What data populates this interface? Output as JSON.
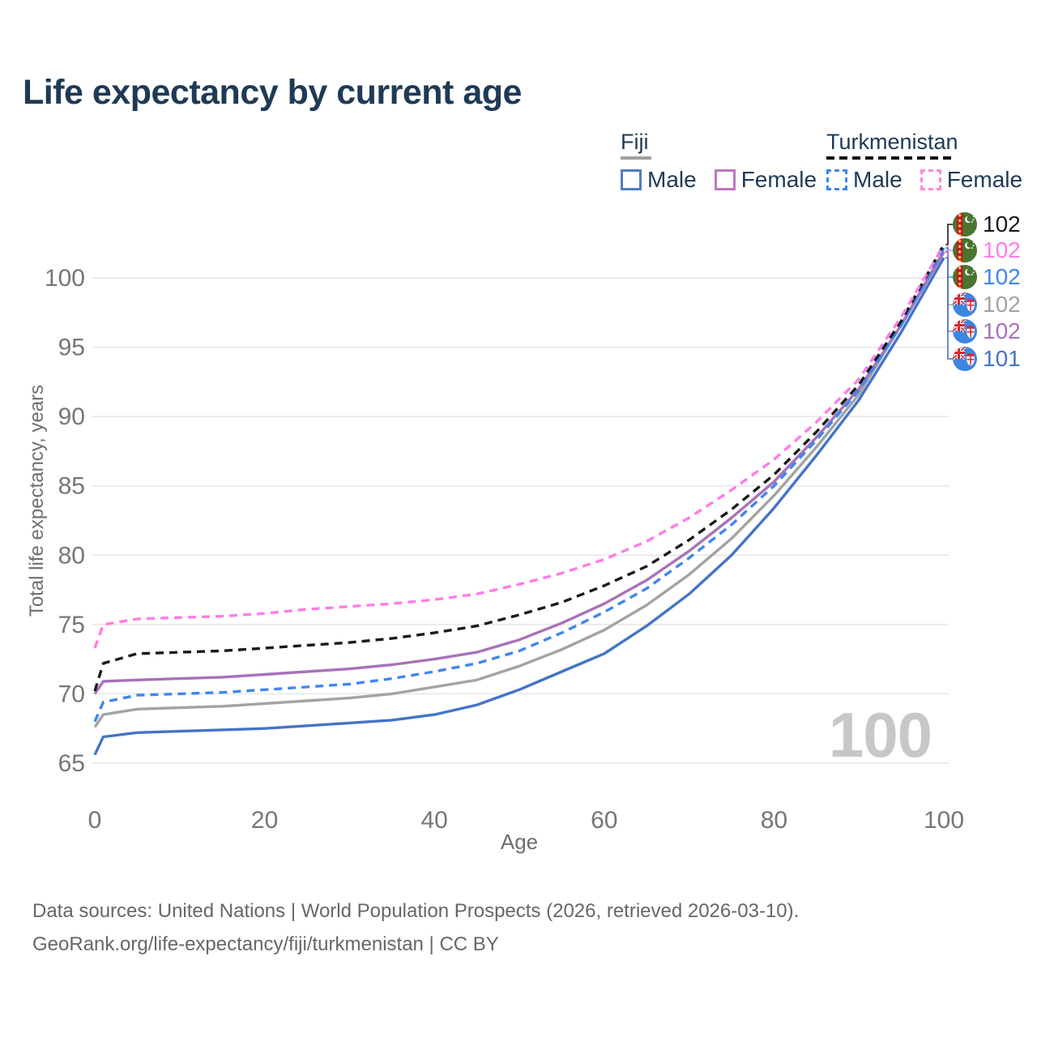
{
  "title": "Life expectancy by current age",
  "age_indicator": "100",
  "legend": {
    "groups": [
      {
        "name": "Fiji",
        "underline_style": "solid",
        "underline_color": "#9e9e9e",
        "items": [
          {
            "label": "Male",
            "color": "#4f7ec0",
            "dash": "solid",
            "series": "fiji-male"
          },
          {
            "label": "Female",
            "color": "#bd76bd",
            "dash": "solid",
            "series": "fiji-female"
          }
        ]
      },
      {
        "name": "Turkmenistan",
        "underline_style": "dashed",
        "underline_color": "#111111",
        "items": [
          {
            "label": "Male",
            "color": "#3f86f0",
            "dash": "dashed",
            "series": "turkmenistan-male"
          },
          {
            "label": "Female",
            "color": "#ff87e1",
            "dash": "dashed",
            "series": "turkmenistan-female"
          }
        ]
      }
    ]
  },
  "chart_data": {
    "type": "line",
    "title": "Life expectancy by current age",
    "xlabel": "Age",
    "ylabel": "Total life expectancy, years",
    "xlim": [
      0,
      100
    ],
    "ylim": [
      65,
      102.5
    ],
    "x_ticks": [
      0,
      20,
      40,
      60,
      80,
      100
    ],
    "y_ticks": [
      65,
      70,
      75,
      80,
      85,
      90,
      95,
      100
    ],
    "grid": "horizontal",
    "legend_position": "top-right",
    "x": [
      0,
      1,
      5,
      10,
      15,
      20,
      25,
      30,
      35,
      40,
      45,
      50,
      55,
      60,
      65,
      70,
      75,
      80,
      85,
      90,
      95,
      100
    ],
    "series": [
      {
        "id": "fiji-male",
        "name": "Fiji Male",
        "color": "#4374c8",
        "dash": "solid",
        "values": [
          65.6,
          66.9,
          67.2,
          67.3,
          67.4,
          67.5,
          67.7,
          67.9,
          68.1,
          68.5,
          69.2,
          70.3,
          71.6,
          72.9,
          74.9,
          77.2,
          80.0,
          83.4,
          87.2,
          91.2,
          96.1,
          101.45
        ]
      },
      {
        "id": "fiji-total",
        "name": "Fiji Both sexes",
        "color": "#a3a3a3",
        "dash": "solid",
        "values": [
          67.6,
          68.5,
          68.9,
          69.0,
          69.1,
          69.3,
          69.5,
          69.7,
          70.0,
          70.5,
          71.0,
          72.0,
          73.2,
          74.6,
          76.4,
          78.6,
          81.2,
          84.3,
          87.8,
          91.6,
          96.65,
          101.95
        ]
      },
      {
        "id": "fiji-female",
        "name": "Fiji Female",
        "color": "#a872b8",
        "dash": "solid",
        "values": [
          70.0,
          70.9,
          71.0,
          71.1,
          71.2,
          71.4,
          71.6,
          71.8,
          72.1,
          72.5,
          73.0,
          73.9,
          75.1,
          76.5,
          78.2,
          80.3,
          82.7,
          85.3,
          88.5,
          92.0,
          96.6,
          101.85
        ]
      },
      {
        "id": "turkmenistan-male",
        "name": "Turkmenistan Male",
        "color": "#3f86f0",
        "dash": "dashed",
        "values": [
          68.0,
          69.4,
          69.9,
          70.0,
          70.1,
          70.3,
          70.5,
          70.7,
          71.1,
          71.6,
          72.2,
          73.1,
          74.4,
          75.9,
          77.6,
          79.8,
          82.2,
          85.0,
          88.3,
          91.9,
          96.6,
          102.15
        ]
      },
      {
        "id": "turkmenistan-total",
        "name": "Turkmenistan Both sexes",
        "color": "#1a1a1a",
        "dash": "dashed",
        "values": [
          70.2,
          72.2,
          72.9,
          73.0,
          73.1,
          73.3,
          73.5,
          73.7,
          74.0,
          74.4,
          74.9,
          75.7,
          76.6,
          77.8,
          79.2,
          81.1,
          83.3,
          85.8,
          88.9,
          92.3,
          96.9,
          102.4
        ]
      },
      {
        "id": "turkmenistan-female",
        "name": "Turkmenistan Female",
        "color": "#ff7ce8",
        "dash": "dashed",
        "values": [
          73.3,
          75.0,
          75.4,
          75.5,
          75.6,
          75.8,
          76.1,
          76.3,
          76.5,
          76.8,
          77.2,
          77.9,
          78.7,
          79.7,
          81.0,
          82.7,
          84.7,
          86.9,
          89.6,
          92.7,
          97.2,
          102.35
        ]
      }
    ]
  },
  "end_labels": [
    {
      "series": "turkmenistan-total",
      "value": "102",
      "country": "Turkmenistan",
      "flag": "turkmenistan",
      "color": "#1a1a1a"
    },
    {
      "series": "turkmenistan-female",
      "value": "102",
      "country": "Turkmenistan",
      "flag": "turkmenistan",
      "color": "#ff7ce8"
    },
    {
      "series": "turkmenistan-male",
      "value": "102",
      "country": "Turkmenistan",
      "flag": "turkmenistan",
      "color": "#3f86f0"
    },
    {
      "series": "fiji-total",
      "value": "102",
      "country": "Fiji",
      "flag": "fiji",
      "color": "#a3a3a3"
    },
    {
      "series": "fiji-female",
      "value": "102",
      "country": "Fiji",
      "flag": "fiji",
      "color": "#a872b8"
    },
    {
      "series": "fiji-male",
      "value": "101",
      "country": "Fiji",
      "flag": "fiji",
      "color": "#4374c8"
    }
  ],
  "footer": {
    "line1": "Data sources: United Nations | World Population Prospects (2026, retrieved 2026-03-10).",
    "line2": "GeoRank.org/life-expectancy/fiji/turkmenistan | CC BY"
  },
  "colors": {
    "title": "#1e3a56",
    "axis_text": "#767676",
    "grid": "#ebebeb",
    "footer": "#666666",
    "watermark": "#c7c7c7"
  }
}
